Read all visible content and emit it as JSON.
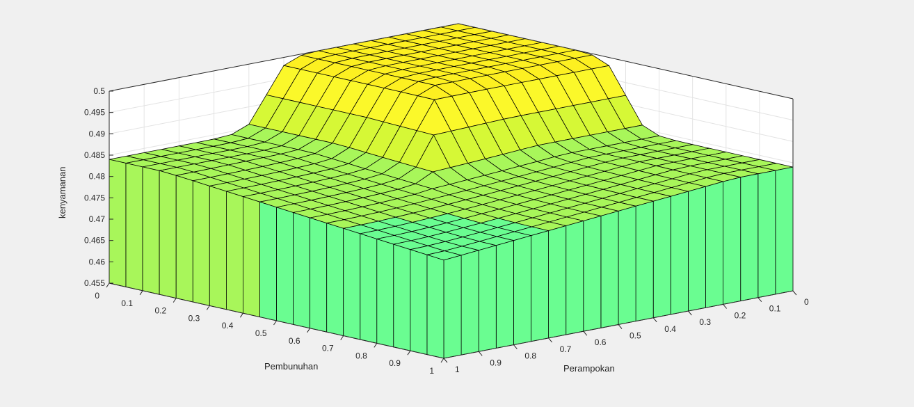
{
  "chart_data": {
    "type": "surface",
    "title": "",
    "xlabel": "Pembunuhan",
    "ylabel": "Perampokan",
    "zlabel": "kenyamanan",
    "x_ticks": [
      "0",
      "0.1",
      "0.2",
      "0.3",
      "0.4",
      "0.5",
      "0.6",
      "0.7",
      "0.8",
      "0.9",
      "1"
    ],
    "y_ticks": [
      "0",
      "0.1",
      "0.2",
      "0.3",
      "0.4",
      "0.5",
      "0.6",
      "0.7",
      "0.8",
      "0.9",
      "1"
    ],
    "z_ticks": [
      "0.455",
      "0.46",
      "0.465",
      "0.47",
      "0.475",
      "0.48",
      "0.485",
      "0.49",
      "0.495",
      "0.5"
    ],
    "xlim": [
      0,
      1
    ],
    "ylim": [
      0,
      1
    ],
    "zlim": [
      0.455,
      0.5
    ],
    "grid": true,
    "colormap": [
      "#1d3bd6",
      "#2a7cf0",
      "#35c2e0",
      "#5fefa8",
      "#6afd91",
      "#a8f65a",
      "#d6f836",
      "#fbf82a",
      "#fdf021"
    ],
    "surface_description": {
      "plateau_max": 0.5,
      "middle_shelf": 0.478,
      "floor": 0.455,
      "grid_resolution": 21
    }
  }
}
